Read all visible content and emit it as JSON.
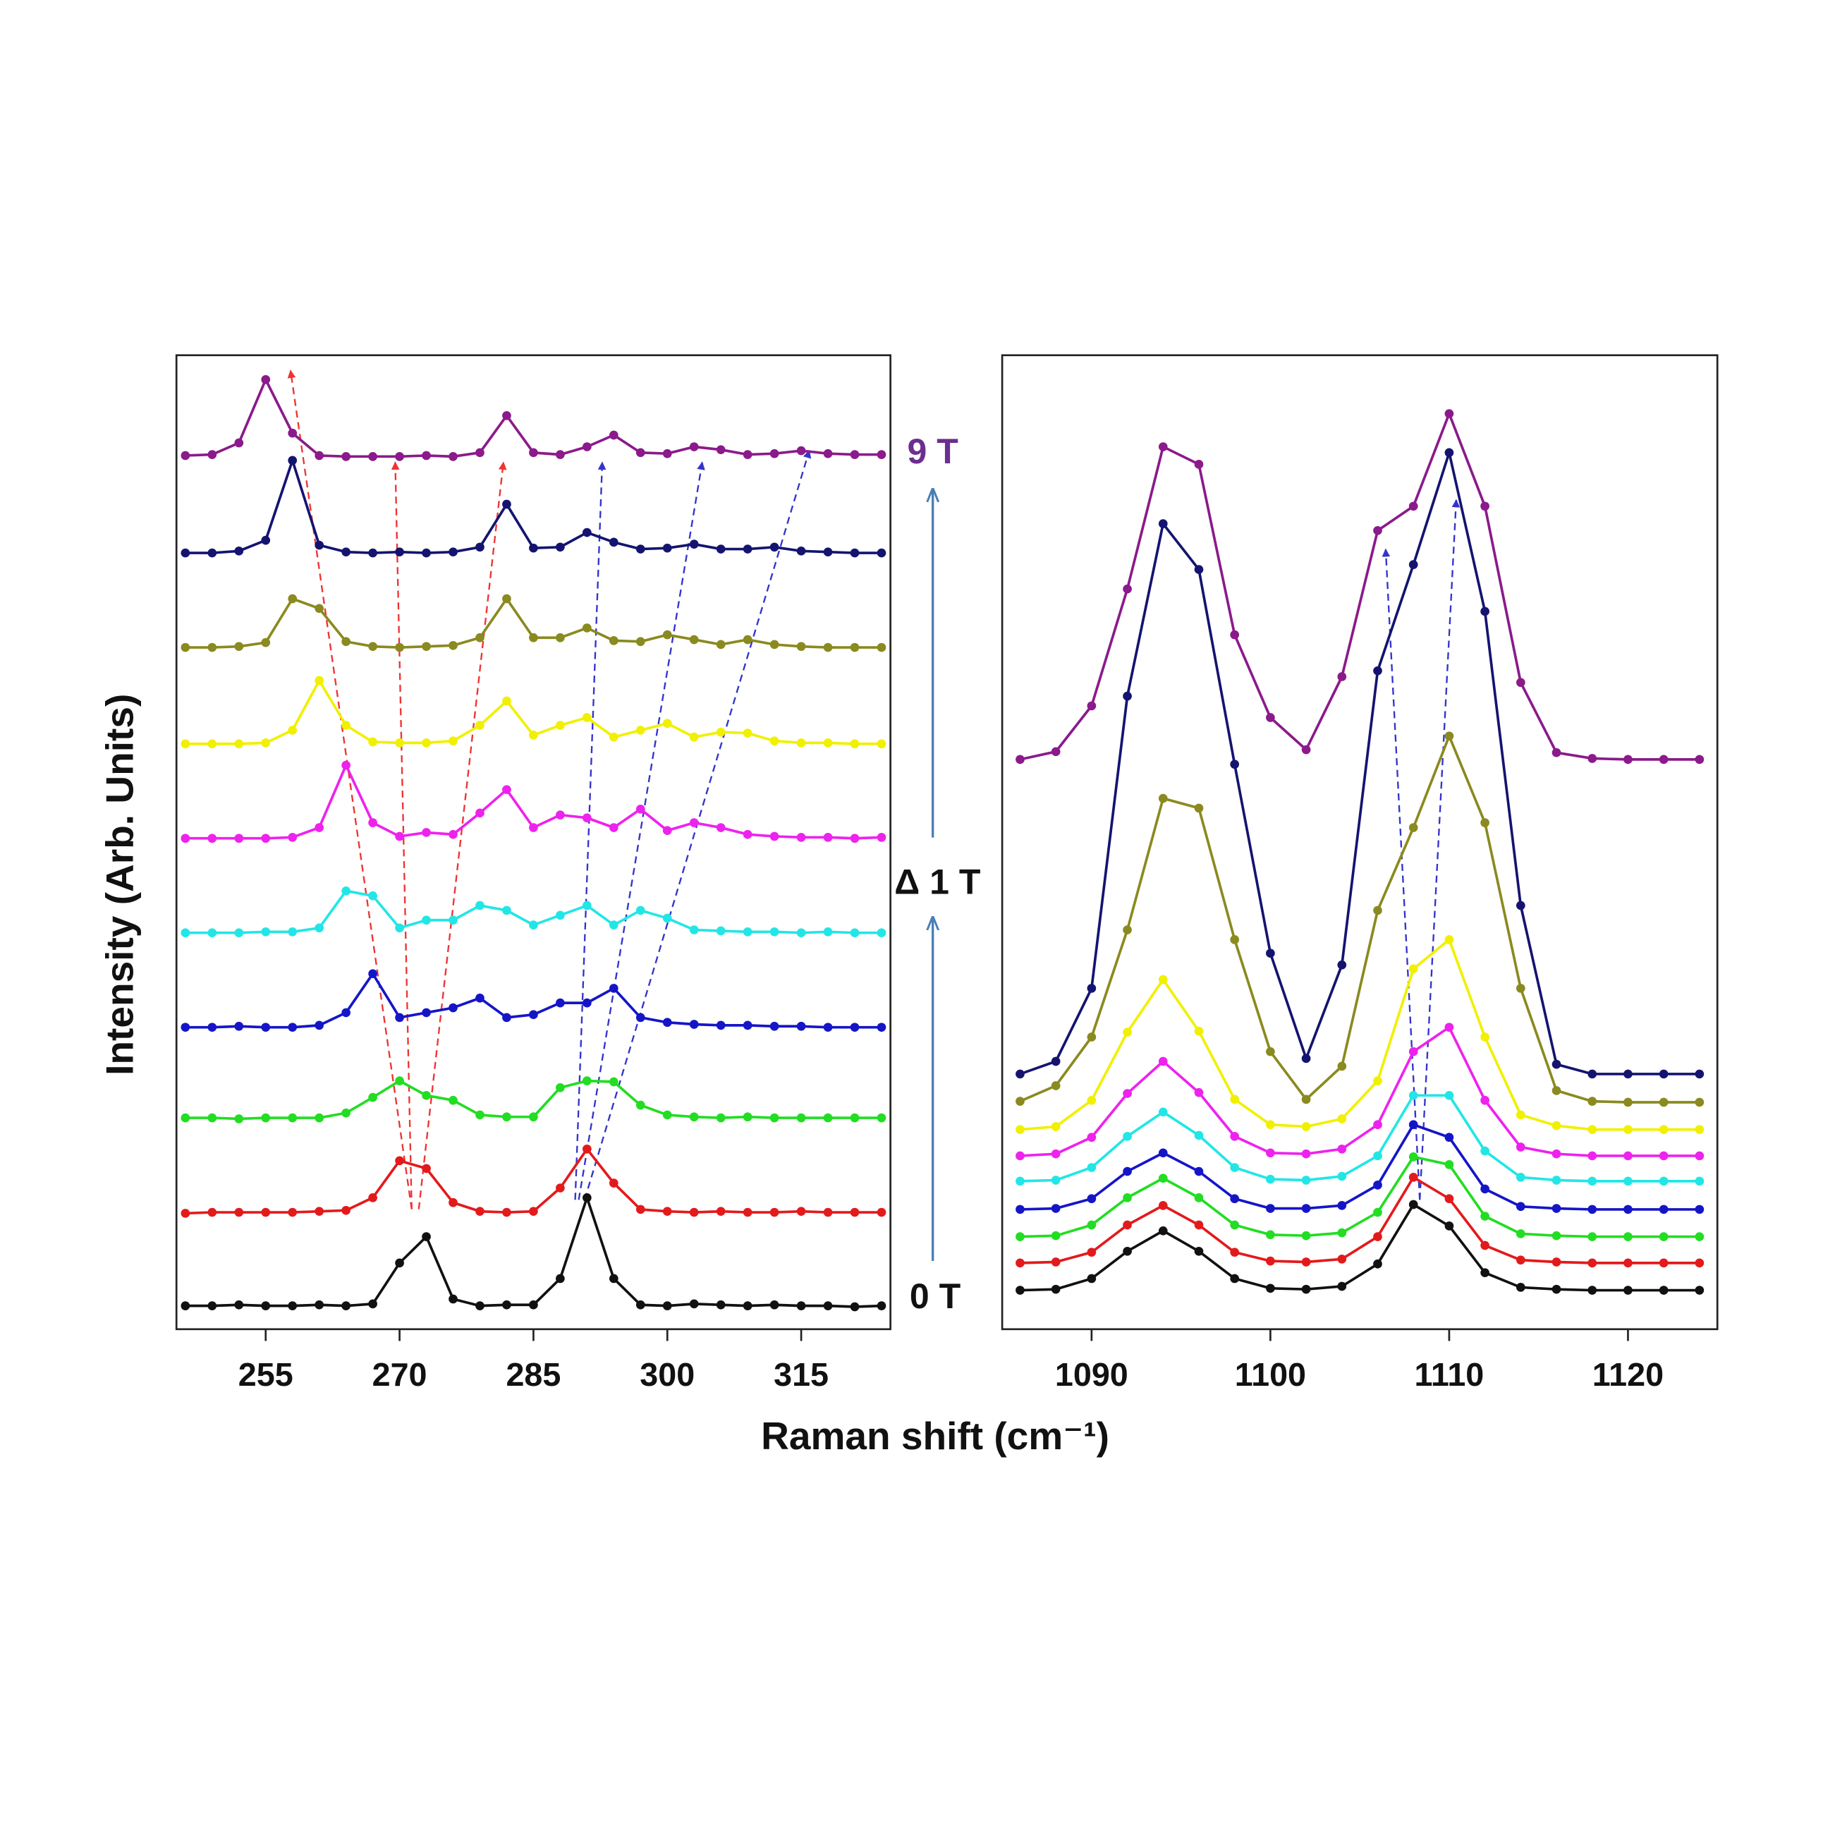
{
  "chart_data": [
    {
      "type": "line",
      "ylabel": "Intensity (Arb. Units)",
      "xlabel": "Raman shift (cm⁻¹)",
      "annotations": [
        {
          "text": "9 T",
          "color": "#6b2f8f"
        },
        {
          "text": "Δ 1 T",
          "color": "#111111"
        },
        {
          "text": "0 T",
          "color": "#111111"
        }
      ],
      "xlim": [
        245,
        325
      ],
      "xticks": [
        255,
        270,
        285,
        300,
        315
      ],
      "ylim": [
        0,
        100
      ],
      "x": [
        246,
        249,
        252,
        255,
        258,
        261,
        264,
        267,
        270,
        273,
        276,
        279,
        282,
        285,
        288,
        291,
        294,
        297,
        300,
        303,
        306,
        309,
        312,
        315,
        318,
        321,
        324
      ],
      "series": [
        {
          "color": "#111111",
          "values": [
            2.4,
            2.4,
            2.5,
            2.4,
            2.4,
            2.5,
            2.4,
            2.6,
            6.8,
            9.5,
            3.1,
            2.4,
            2.5,
            2.5,
            5.2,
            13.5,
            5.2,
            2.5,
            2.4,
            2.6,
            2.5,
            2.4,
            2.5,
            2.4,
            2.4,
            2.3,
            2.4
          ]
        },
        {
          "color": "#e31a1c",
          "values": [
            11.9,
            12,
            12,
            12,
            12,
            12.1,
            12.2,
            13.5,
            17.3,
            16.5,
            13,
            12.1,
            12,
            12.1,
            14.5,
            18.5,
            15,
            12.3,
            12.1,
            12,
            12.1,
            12,
            12,
            12.1,
            12,
            12,
            12
          ]
        },
        {
          "color": "#22dd22",
          "values": [
            21.7,
            21.7,
            21.6,
            21.7,
            21.7,
            21.7,
            22.2,
            23.8,
            25.5,
            24,
            23.5,
            22,
            21.8,
            21.8,
            24.8,
            25.5,
            25.4,
            23,
            22,
            21.8,
            21.7,
            21.8,
            21.7,
            21.7,
            21.7,
            21.7,
            21.7
          ]
        },
        {
          "color": "#1515c8",
          "values": [
            31,
            31,
            31.1,
            31,
            31,
            31.2,
            32.5,
            36.5,
            32,
            32.5,
            33,
            34,
            32,
            32.3,
            33.5,
            33.5,
            35,
            32,
            31.5,
            31.3,
            31.2,
            31.2,
            31.1,
            31.1,
            31,
            31,
            31
          ]
        },
        {
          "color": "#22e6e6",
          "values": [
            40.7,
            40.7,
            40.7,
            40.8,
            40.8,
            41.2,
            45,
            44.5,
            41.2,
            42,
            42,
            43.5,
            43,
            41.5,
            42.5,
            43.5,
            41.5,
            43,
            42.2,
            41,
            40.9,
            40.8,
            40.8,
            40.7,
            40.8,
            40.7,
            40.7
          ]
        },
        {
          "color": "#ee22ee",
          "values": [
            50.4,
            50.4,
            50.4,
            50.4,
            50.5,
            51.5,
            57.9,
            52,
            50.6,
            51,
            50.8,
            53,
            55.4,
            51.5,
            52.8,
            52.5,
            51.5,
            53.4,
            51.2,
            52,
            51.5,
            50.8,
            50.6,
            50.5,
            50.5,
            50.4,
            50.5
          ]
        },
        {
          "color": "#f0f000",
          "values": [
            60.1,
            60.1,
            60.1,
            60.2,
            61.5,
            66.6,
            62,
            60.3,
            60.2,
            60.2,
            60.4,
            62,
            64.5,
            61,
            62,
            62.8,
            60.8,
            61.5,
            62.2,
            60.8,
            61.3,
            61.2,
            60.4,
            60.2,
            60.2,
            60.1,
            60.1
          ]
        },
        {
          "color": "#8a8a20",
          "values": [
            70,
            70,
            70.1,
            70.5,
            75,
            74,
            70.6,
            70.1,
            70,
            70.1,
            70.2,
            71,
            75,
            71,
            71,
            72,
            70.7,
            70.6,
            71.3,
            70.8,
            70.3,
            70.8,
            70.3,
            70.1,
            70,
            70,
            70
          ]
        },
        {
          "color": "#141470",
          "values": [
            79.7,
            79.7,
            79.9,
            81,
            89.2,
            80.5,
            79.8,
            79.7,
            79.8,
            79.7,
            79.8,
            80.3,
            84.7,
            80.2,
            80.3,
            81.8,
            80.8,
            80.1,
            80.2,
            80.6,
            80.1,
            80.1,
            80.3,
            79.9,
            79.8,
            79.7,
            79.7
          ]
        },
        {
          "color": "#8b1a8b",
          "values": [
            89.7,
            89.8,
            91,
            97.5,
            92,
            89.7,
            89.6,
            89.6,
            89.6,
            89.7,
            89.6,
            90,
            93.8,
            90,
            89.8,
            90.6,
            91.8,
            90,
            89.9,
            90.6,
            90.3,
            89.8,
            89.9,
            90.2,
            89.9,
            89.8,
            89.8
          ]
        }
      ]
    },
    {
      "type": "line",
      "xlim": [
        1085,
        1125
      ],
      "xticks": [
        1090,
        1100,
        1110,
        1120
      ],
      "ylim": [
        0,
        100
      ],
      "x": [
        1086,
        1088,
        1090,
        1092,
        1094,
        1096,
        1098,
        1100,
        1102,
        1104,
        1106,
        1108,
        1110,
        1112,
        1114,
        1116,
        1118,
        1120,
        1122,
        1124
      ],
      "series": [
        {
          "color": "#111111",
          "values": [
            4,
            4.1,
            5.2,
            8,
            10.1,
            8,
            5.2,
            4.2,
            4.1,
            4.4,
            6.7,
            12.8,
            10.6,
            5.8,
            4.3,
            4.1,
            4,
            4,
            4,
            4
          ]
        },
        {
          "color": "#e31a1c",
          "values": [
            6.8,
            6.9,
            7.9,
            10.7,
            12.7,
            10.7,
            7.9,
            7,
            6.9,
            7.2,
            9.5,
            15.6,
            13.4,
            8.6,
            7.1,
            6.9,
            6.8,
            6.8,
            6.8,
            6.8
          ]
        },
        {
          "color": "#22dd22",
          "values": [
            9.5,
            9.6,
            10.7,
            13.5,
            15.5,
            13.5,
            10.7,
            9.7,
            9.6,
            9.9,
            12,
            17.7,
            16.9,
            11.6,
            9.8,
            9.6,
            9.5,
            9.5,
            9.5,
            9.5
          ]
        },
        {
          "color": "#1515c8",
          "values": [
            12.3,
            12.4,
            13.4,
            16.2,
            18.1,
            16.2,
            13.4,
            12.4,
            12.4,
            12.7,
            14.8,
            21,
            19.7,
            14.4,
            12.6,
            12.4,
            12.3,
            12.3,
            12.3,
            12.3
          ]
        },
        {
          "color": "#22e6e6",
          "values": [
            15.2,
            15.3,
            16.6,
            19.8,
            22.3,
            19.9,
            16.6,
            15.4,
            15.3,
            15.7,
            17.8,
            24,
            24,
            18.3,
            15.6,
            15.3,
            15.2,
            15.2,
            15.2,
            15.2
          ]
        },
        {
          "color": "#ee22ee",
          "values": [
            17.8,
            18,
            19.7,
            24.2,
            27.5,
            24.3,
            19.8,
            18.1,
            18,
            18.5,
            21,
            28.5,
            31,
            23.5,
            18.7,
            18,
            17.8,
            17.8,
            17.8,
            17.8
          ]
        },
        {
          "color": "#f0f000",
          "values": [
            20.5,
            20.8,
            23.5,
            30.5,
            35.9,
            30.6,
            23.6,
            21,
            20.8,
            21.6,
            25.5,
            37,
            40,
            30,
            22,
            20.9,
            20.5,
            20.5,
            20.5,
            20.5
          ]
        },
        {
          "color": "#8a8a20",
          "values": [
            23.4,
            25,
            30,
            41,
            54.5,
            53.5,
            40,
            28.5,
            23.6,
            27,
            43,
            51.5,
            60.9,
            52,
            35,
            24.5,
            23.4,
            23.3,
            23.3,
            23.3
          ]
        },
        {
          "color": "#141470",
          "values": [
            26.2,
            27.5,
            35,
            65,
            82.7,
            78,
            58,
            38.6,
            27.8,
            37.4,
            67.6,
            78.5,
            90,
            73.7,
            43.5,
            27.2,
            26.2,
            26.2,
            26.2,
            26.2
          ]
        },
        {
          "color": "#8b1a8b",
          "values": [
            58.5,
            59.3,
            64,
            76,
            90.6,
            88.8,
            71.3,
            62.8,
            59.5,
            67,
            82,
            84.5,
            94,
            84.5,
            66.4,
            59.2,
            58.6,
            58.5,
            58.5,
            58.5
          ]
        }
      ]
    }
  ]
}
